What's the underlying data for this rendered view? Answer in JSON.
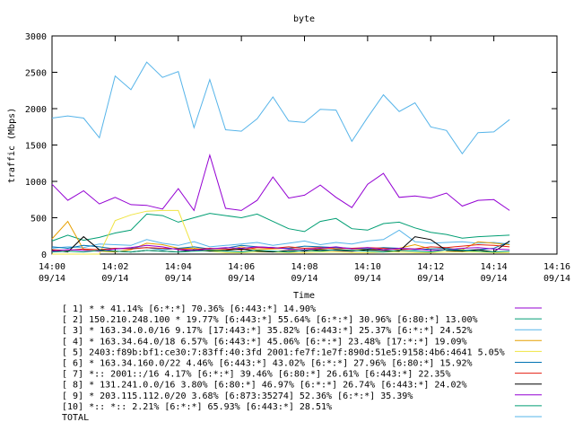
{
  "chart_data": {
    "type": "line",
    "title": "byte",
    "xlabel": "Time",
    "ylabel": "traffic (Mbps)",
    "ylim": [
      0,
      3000
    ],
    "xlim": [
      0,
      16
    ],
    "yticks": [
      0,
      500,
      1000,
      1500,
      2000,
      2500,
      3000
    ],
    "xticks": [
      {
        "value": 0,
        "line1": "14:00",
        "line2": "09/14"
      },
      {
        "value": 2,
        "line1": "14:02",
        "line2": "09/14"
      },
      {
        "value": 4,
        "line1": "14:04",
        "line2": "09/14"
      },
      {
        "value": 6,
        "line1": "14:06",
        "line2": "09/14"
      },
      {
        "value": 8,
        "line1": "14:08",
        "line2": "09/14"
      },
      {
        "value": 10,
        "line1": "14:10",
        "line2": "09/14"
      },
      {
        "value": 12,
        "line1": "14:12",
        "line2": "09/14"
      },
      {
        "value": 14,
        "line1": "14:14",
        "line2": "09/14"
      },
      {
        "value": 16,
        "line1": "14:16",
        "line2": "09/14"
      }
    ],
    "grid": false,
    "legend_position": "bottom",
    "x": [
      0,
      0.5,
      1,
      1.5,
      2,
      2.5,
      3,
      3.5,
      4,
      4.5,
      5,
      5.5,
      6,
      6.5,
      7,
      7.5,
      8,
      8.5,
      9,
      9.5,
      10,
      10.5,
      11,
      11.5,
      12,
      12.5,
      13,
      13.5,
      14,
      14.5
    ],
    "series": [
      {
        "name": "[ 1] * * 41.14%  [6:*:*] 70.36% [6:443:*] 14.90%",
        "color": "#9400d3",
        "values": [
          960,
          740,
          870,
          690,
          780,
          680,
          670,
          620,
          900,
          600,
          1360,
          630,
          600,
          740,
          1060,
          770,
          810,
          950,
          780,
          640,
          960,
          1110,
          780,
          800,
          770,
          840,
          660,
          740,
          750,
          600
        ]
      },
      {
        "name": "[ 2] 150.210.248.100 * 19.77%  [6:443:*] 55.64% [6:*:*] 30.96% [6:80:*] 13.00%",
        "color": "#009e73",
        "values": [
          180,
          260,
          190,
          230,
          290,
          330,
          550,
          530,
          440,
          500,
          560,
          530,
          500,
          550,
          450,
          350,
          310,
          450,
          490,
          350,
          330,
          420,
          440,
          360,
          300,
          270,
          220,
          240,
          250,
          260
        ]
      },
      {
        "name": "[ 3] * 163.34.0.0/16 9.17%  [17:443:*] 35.82% [6:443:*] 25.37% [6:*:*] 24.52%",
        "color": "#56b4e9",
        "values": [
          80,
          100,
          90,
          140,
          130,
          120,
          200,
          150,
          120,
          170,
          100,
          120,
          140,
          160,
          120,
          150,
          180,
          130,
          160,
          140,
          180,
          200,
          330,
          170,
          150,
          160,
          170,
          150,
          160,
          140
        ]
      },
      {
        "name": "[ 4] * 163.34.64.0/18 6.57%  [6:443:*] 45.06% [6:*:*] 23.48% [17:*:*] 19.09%",
        "color": "#e69f00",
        "values": [
          210,
          450,
          60,
          40,
          30,
          60,
          150,
          130,
          80,
          80,
          60,
          50,
          100,
          60,
          70,
          80,
          60,
          70,
          90,
          70,
          60,
          80,
          80,
          130,
          70,
          80,
          60,
          170,
          150,
          130
        ]
      },
      {
        "name": "[ 5] 2403:f89b:bf1:ce30:7:83ff:40:3fd 2001:fe7f:1e7f:890d:51e5:9158:4b6:4641 5.05%",
        "color": "#f0e442",
        "values": [
          0,
          0,
          0,
          0,
          460,
          540,
          590,
          600,
          600,
          50,
          40,
          20,
          20,
          30,
          30,
          20,
          20,
          30,
          30,
          20,
          20,
          30,
          30,
          20,
          20,
          30,
          30,
          30,
          20,
          20
        ]
      },
      {
        "name": "[ 6] * 163.34.160.0/22 4.46%  [6:443:*] 43.02% [6:*:*] 27.96% [6:80:*] 15.92%",
        "color": "#0072b2",
        "values": [
          100,
          80,
          120,
          100,
          70,
          80,
          90,
          60,
          80,
          100,
          70,
          80,
          120,
          100,
          90,
          80,
          110,
          100,
          90,
          80,
          70,
          90,
          80,
          60,
          70,
          80,
          50,
          60,
          80,
          170
        ]
      },
      {
        "name": "[ 7] *:: 2001::/16 4.17%  [6:*:*] 39.46% [6:80:*] 26.61% [6:443:*] 22.35%",
        "color": "#e51e10",
        "values": [
          60,
          50,
          70,
          60,
          80,
          70,
          90,
          80,
          70,
          60,
          80,
          70,
          60,
          90,
          80,
          100,
          80,
          90,
          70,
          80,
          90,
          80,
          60,
          70,
          100,
          90,
          110,
          130,
          120,
          100
        ]
      },
      {
        "name": "[ 8] * 131.241.0.0/16 3.80%  [6:80:*] 46.97% [6:*:*] 26.74% [6:443:*] 24.02%",
        "color": "#000000",
        "values": [
          50,
          30,
          240,
          60,
          40,
          30,
          50,
          40,
          30,
          60,
          40,
          50,
          70,
          40,
          30,
          50,
          40,
          60,
          50,
          40,
          60,
          50,
          40,
          240,
          200,
          50,
          40,
          60,
          30,
          180
        ]
      },
      {
        "name": "[ 9] * 203.115.112.0/20 3.68%  [6:873:35274] 52.36% [6:*:*] 35.39%",
        "color": "#9400d3",
        "values": [
          40,
          60,
          50,
          40,
          70,
          90,
          120,
          100,
          60,
          50,
          70,
          90,
          80,
          100,
          90,
          70,
          60,
          80,
          100,
          70,
          90,
          60,
          80,
          70,
          50,
          60,
          80,
          90,
          70,
          60
        ]
      },
      {
        "name": "[10] *:: *:: 2.21%  [6:*:*] 65.93% [6:443:*] 28.51%",
        "color": "#009e73",
        "values": [
          30,
          40,
          30,
          50,
          40,
          30,
          50,
          40,
          30,
          40,
          50,
          40,
          30,
          50,
          40,
          30,
          50,
          40,
          60,
          50,
          40,
          30,
          50,
          40,
          30,
          60,
          50,
          40,
          30,
          40
        ]
      },
      {
        "name": "TOTAL",
        "color": "#56b4e9",
        "values": [
          1870,
          1900,
          1870,
          1600,
          2450,
          2260,
          2640,
          2430,
          2510,
          1740,
          2400,
          1710,
          1690,
          1860,
          2160,
          1830,
          1810,
          1990,
          1980,
          1550,
          1880,
          2190,
          1960,
          2080,
          1750,
          1700,
          1380,
          1670,
          1680,
          1850
        ]
      }
    ]
  }
}
